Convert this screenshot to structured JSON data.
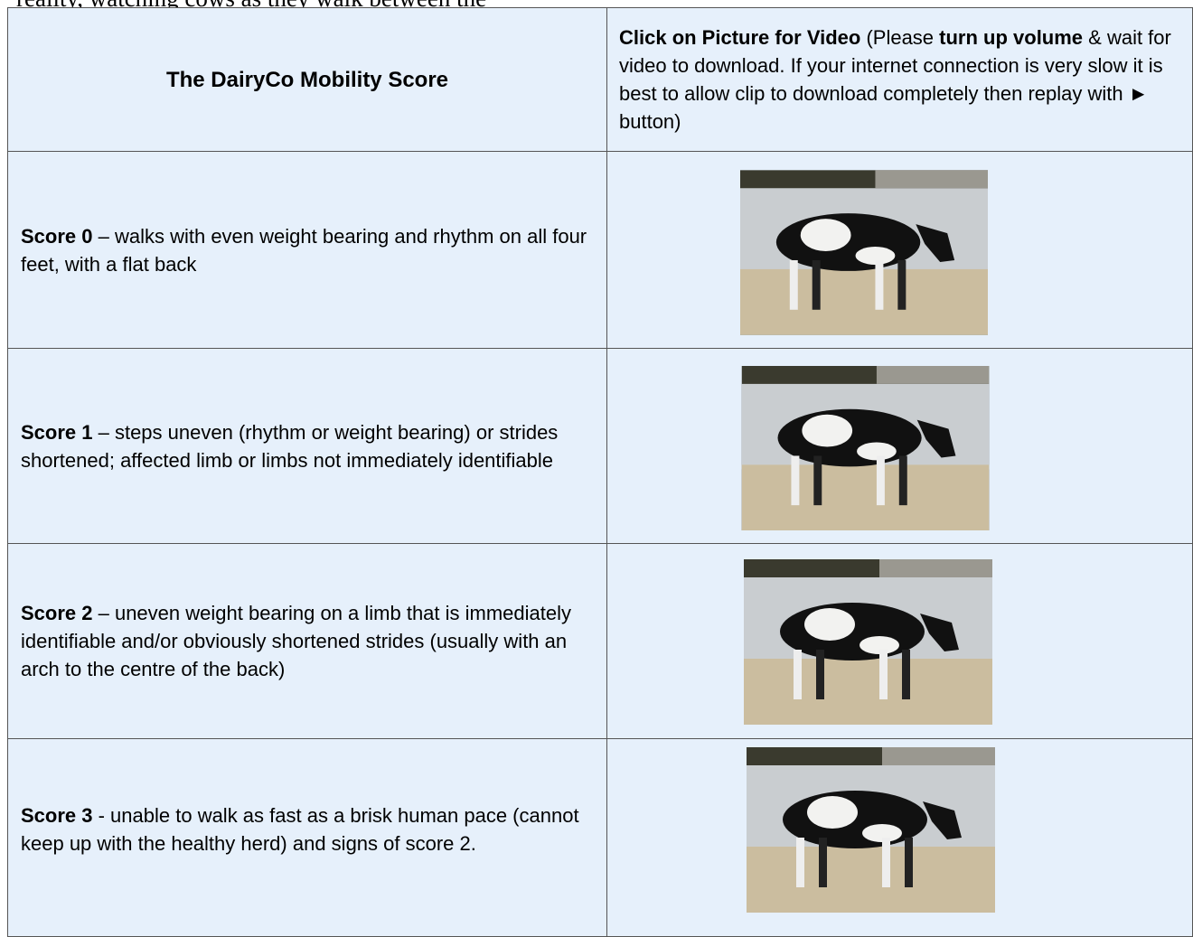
{
  "intro_text": "reality, watching cows as they walk between the",
  "table": {
    "header": {
      "title": "The DairyCo Mobility Score",
      "video_note": [
        "Click on Picture for Video",
        " (Please ",
        "turn up volume",
        " & wait for video to download. If your internet connection is very slow it is best to allow clip to download completely then replay with ► button)"
      ]
    },
    "rows": [
      {
        "score": "Score 0",
        "description": " – walks with even weight bearing and rhythm on all four feet, with a flat back"
      },
      {
        "score": "Score 1",
        "description": " – steps uneven (rhythm or weight bearing) or strides shortened; affected limb or limbs not immediately identifiable"
      },
      {
        "score": "Score 2",
        "description": " – uneven weight bearing on a limb that is immediately identifiable and/or obviously shortened strides (usually with an arch to the centre of the back)"
      },
      {
        "score": "Score 3",
        "description": " - unable to walk as fast as a brisk human pace (cannot keep up with the healthy herd) and signs of score 2."
      }
    ]
  }
}
